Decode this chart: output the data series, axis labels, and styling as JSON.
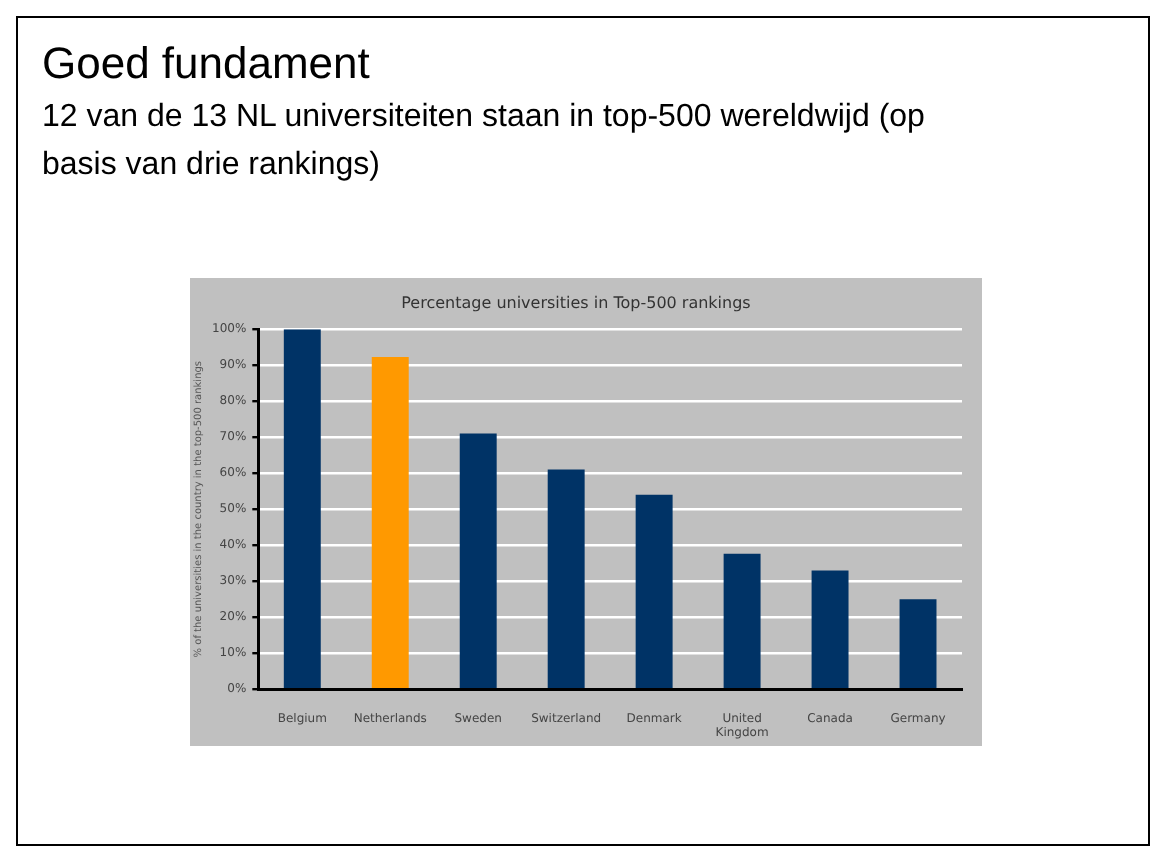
{
  "chart_data": {
    "type": "bar",
    "title": "Goed fundament",
    "subtitle": "12 van de 13 NL universiteiten staan in top-500 wereldwijd (op basis van drie rankings)",
    "annotations": [
      "Percentage universities in Top-500 rankings"
    ],
    "ylabel": "% of the universities in the country in the top-500 rankings",
    "categories": [
      "Belgium",
      "Netherlands",
      "Sweden",
      "Switzerland",
      "Denmark",
      "United Kingdom",
      "Canada",
      "Germany"
    ],
    "values": [
      100,
      92.3,
      71,
      61,
      54,
      37.6,
      33,
      25
    ],
    "colors": [
      "#003366",
      "#ff9900",
      "#003366",
      "#003366",
      "#003366",
      "#003366",
      "#003366",
      "#003366"
    ],
    "ylim": [
      0,
      100
    ],
    "yticks": [
      {
        "value": 0,
        "label": "0%"
      },
      {
        "value": 10,
        "label": "10%"
      },
      {
        "value": 20,
        "label": "20%"
      },
      {
        "value": 30,
        "label": "30%"
      },
      {
        "value": 40,
        "label": "40%"
      },
      {
        "value": 50,
        "label": "50%"
      },
      {
        "value": 60,
        "label": "60%"
      },
      {
        "value": 70,
        "label": "70%"
      },
      {
        "value": 80,
        "label": "80%"
      },
      {
        "value": 90,
        "label": "90%"
      },
      {
        "value": 100,
        "label": "100%"
      }
    ],
    "grid": "y",
    "legend": false
  }
}
